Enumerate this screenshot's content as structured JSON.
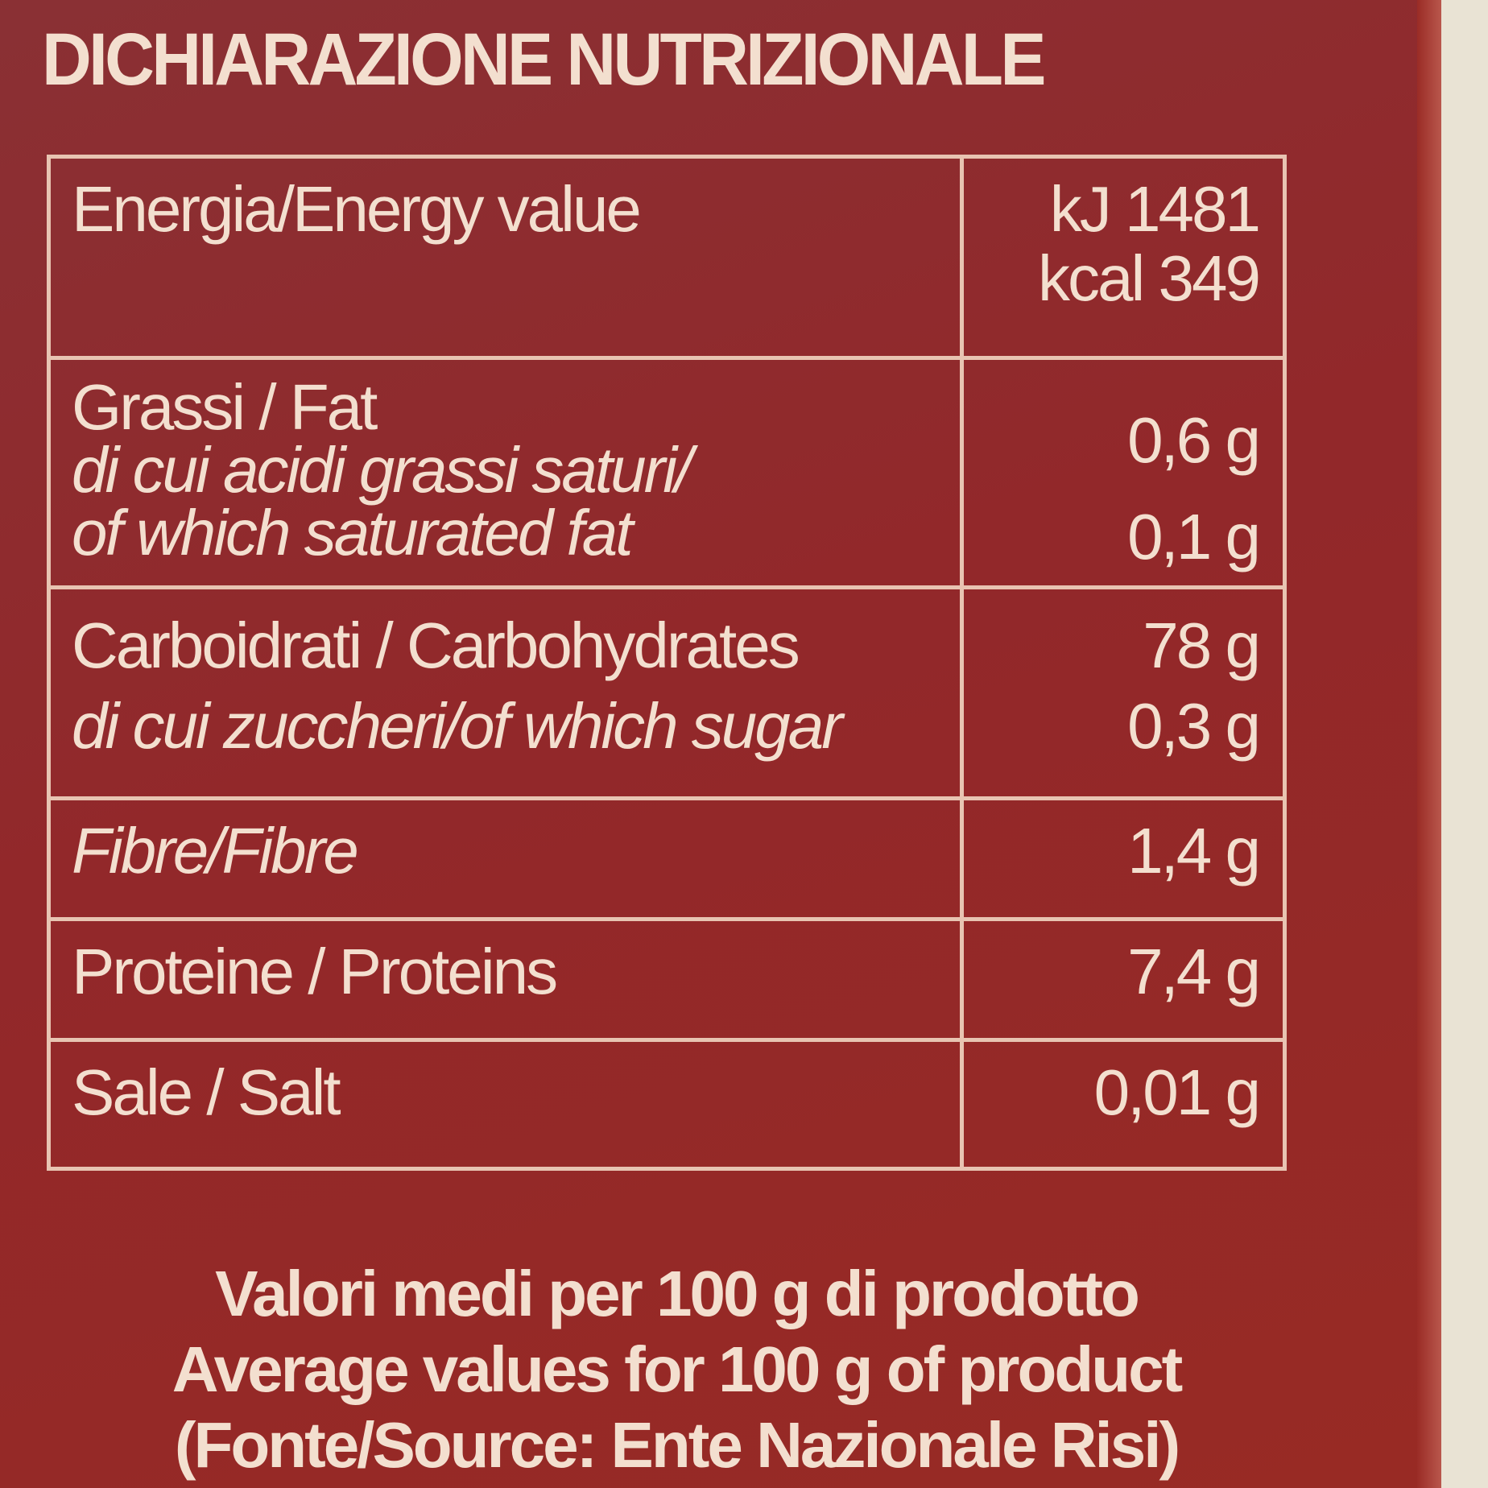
{
  "title": "DICHIARAZIONE NUTRIZIONALE",
  "rows": [
    {
      "label": "Energia/Energy value",
      "values": [
        "kJ 1481",
        "kcal 349"
      ]
    },
    {
      "label": "Grassi / Fat",
      "sub": "di cui acidi grassi saturi/",
      "sub2": "of which saturated fat",
      "values": [
        "0,6 g",
        "0,1 g"
      ]
    },
    {
      "label": "Carboidrati / Carbohydrates",
      "sub": "di cui zuccheri/of which sugar",
      "values": [
        "78 g",
        "0,3 g"
      ]
    },
    {
      "label": "Fibre/Fibre",
      "values": [
        "1,4 g"
      ]
    },
    {
      "label": "Proteine / Proteins",
      "values": [
        "7,4 g"
      ]
    },
    {
      "label": "Sale / Salt",
      "values": [
        "0,01 g"
      ]
    }
  ],
  "footer": [
    "Valori medi per 100 g di prodotto",
    "Average values for 100 g of product",
    "(Fonte/Source: Ente Nazionale Risi)"
  ],
  "colors": {
    "background": "#92282a",
    "text": "#f3dfcf"
  }
}
